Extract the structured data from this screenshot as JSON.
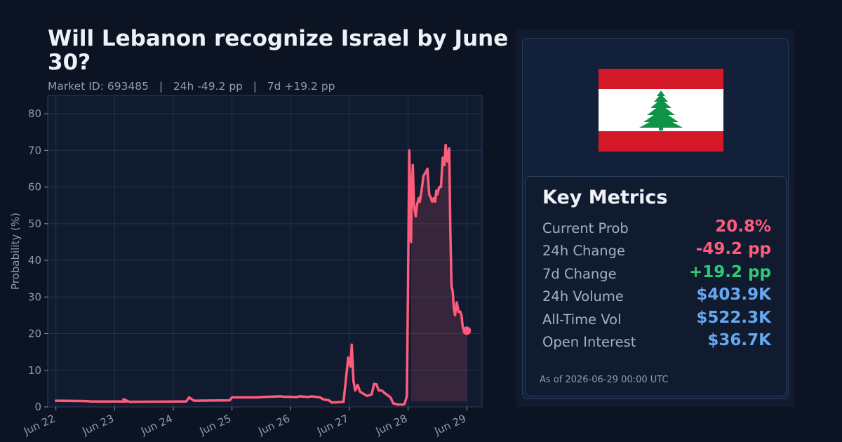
{
  "header": {
    "title": "Will Lebanon recognize Israel by June 30?",
    "subtitle": "Market ID: 693485   |   24h -49.2 pp   |   7d +19.2 pp"
  },
  "chart_data": {
    "type": "line",
    "ylabel": "Probability (%)",
    "xlabel": "",
    "ylim": [
      0,
      85
    ],
    "yticks": [
      0,
      10,
      20,
      30,
      40,
      50,
      60,
      70,
      80
    ],
    "xlim": [
      -0.14,
      7.26
    ],
    "xticks": [
      0,
      1,
      2,
      3,
      4,
      5,
      6,
      7
    ],
    "xtick_labels": [
      "Jun 22",
      "Jun 23",
      "Jun 24",
      "Jun 25",
      "Jun 26",
      "Jun 27",
      "Jun 28",
      "Jun 29"
    ],
    "grid": true,
    "line_color": "#ff5c7c",
    "series": [
      {
        "x": [
          0,
          0.5,
          0.6,
          1.2,
          1.15,
          1.25,
          2.22,
          2.27,
          2.35,
          2.96,
          3.0,
          3.45,
          3.5,
          3.83,
          3.87,
          4.1,
          4.15,
          4.3,
          4.35,
          4.5,
          4.55,
          4.65,
          4.7,
          4.9,
          4.98,
          5.02,
          5.04,
          5.07,
          5.1,
          5.14,
          5.18,
          5.22,
          5.3,
          5.38,
          5.42,
          5.46,
          5.5,
          5.55,
          5.6,
          5.7,
          5.75,
          5.8,
          5.82,
          5.86,
          5.9,
          5.94,
          5.98,
          6.0,
          6.02,
          6.05,
          6.06,
          6.08,
          6.09,
          6.1,
          6.13,
          6.15,
          6.18,
          6.2,
          6.23,
          6.26,
          6.3,
          6.33,
          6.36,
          6.39,
          6.41,
          6.44,
          6.46,
          6.48,
          6.5,
          6.53,
          6.56,
          6.59,
          6.62,
          6.64,
          6.67,
          6.7,
          6.72,
          6.74,
          6.76,
          6.78,
          6.8,
          6.83,
          6.86,
          6.89,
          6.91,
          6.93,
          6.95,
          6.97,
          7.0
        ],
        "y": [
          1.7,
          1.6,
          1.5,
          1.5,
          2.1,
          1.4,
          1.5,
          2.6,
          1.7,
          1.8,
          2.6,
          2.6,
          2.7,
          2.9,
          2.8,
          2.7,
          2.9,
          2.7,
          2.9,
          2.6,
          2.1,
          1.8,
          1.2,
          1.4,
          13.5,
          11,
          17,
          7,
          4.5,
          6,
          4.2,
          3.8,
          3,
          3.4,
          6.3,
          6.2,
          4.5,
          4.5,
          3.8,
          2.6,
          0.9,
          0.8,
          0.6,
          0.7,
          0.6,
          0.8,
          3,
          35,
          70,
          45,
          57,
          66,
          61,
          55,
          52,
          55,
          57,
          56,
          59,
          63,
          64,
          65,
          58,
          57,
          56,
          57,
          56,
          59,
          58,
          60,
          60,
          68,
          66,
          71.5,
          67,
          70.5,
          48,
          33,
          31.5,
          27,
          25,
          28.5,
          26,
          26,
          25,
          22,
          21,
          21,
          20.8
        ]
      }
    ],
    "shaded_region": {
      "x_start": 6.05,
      "x_end": 7.0,
      "baseline": 1.5
    }
  },
  "panel": {
    "flag": {
      "name": "lebanon-flag",
      "red": "#d41a28",
      "white": "#ffffff",
      "cedar": "#0e9445"
    },
    "metrics_title": "Key Metrics",
    "metrics": [
      {
        "label": "Current Prob",
        "value": "20.8%",
        "color": "#ff5c7c"
      },
      {
        "label": "24h Change",
        "value": "-49.2 pp",
        "color": "#ff5c7c"
      },
      {
        "label": "7d Change",
        "value": "+19.2 pp",
        "color": "#2ecc71"
      },
      {
        "label": "24h Volume",
        "value": "$403.9K",
        "color": "#66a8f2"
      },
      {
        "label": "All-Time Vol",
        "value": "$522.3K",
        "color": "#66a8f2"
      },
      {
        "label": "Open Interest",
        "value": "$36.7K",
        "color": "#66a8f2"
      }
    ],
    "as_of": "As of 2026-06-29 00:00 UTC"
  }
}
